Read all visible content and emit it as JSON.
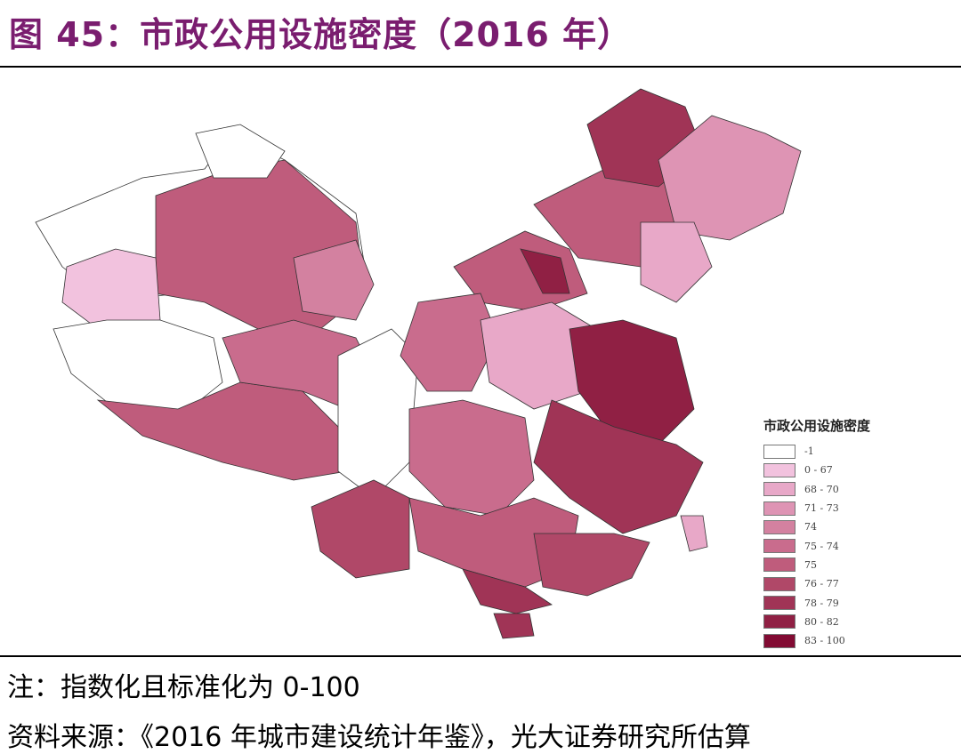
{
  "title": "图 45：市政公用设施密度（2016 年）",
  "chart_data": {
    "type": "choropleth",
    "title": "图 45：市政公用设施密度（2016 年）",
    "legend": {
      "title": "市政公用设施密度",
      "placement": "bottom-right",
      "classes": [
        {
          "label": "-1",
          "color": "#ffffff"
        },
        {
          "label": "0 - 67",
          "color": "#f2c2de"
        },
        {
          "label": "68 - 70",
          "color": "#e8a8c8"
        },
        {
          "label": "71 - 73",
          "color": "#de94b4"
        },
        {
          "label": "74",
          "color": "#d381a0"
        },
        {
          "label": "75 - 74",
          "color": "#c96c8d"
        },
        {
          "label": "75",
          "color": "#bf5c7c"
        },
        {
          "label": "76 - 77",
          "color": "#b04868"
        },
        {
          "label": "78 - 79",
          "color": "#a03456"
        },
        {
          "label": "80 - 82",
          "color": "#902044"
        },
        {
          "label": "83 - 100",
          "color": "#820b33"
        }
      ]
    }
  },
  "notes": {
    "note": "注：指数化且标准化为 0-100",
    "source": "资料来源：《2016 年城市建设统计年鉴》，光大证券研究所估算"
  }
}
